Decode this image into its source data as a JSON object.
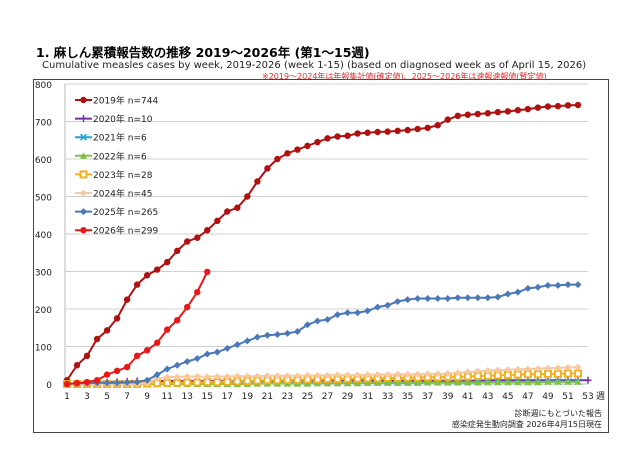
{
  "title": "1. 麻しん累積報告数の推移 2019～2026年 (第1～15週)",
  "subtitle": "Cumulative measles cases by week, 2019-2026 (week 1-15)  (based on diagnosed week as of April 15, 2026)",
  "note": "※2019～2024年は年報集計値(確定値)、2025～2026年は速報速報値(暫定値)",
  "footer": [
    "診断週にもとづいた報告",
    "感染症発生動向調査 2026年4月15日現在"
  ],
  "chart_data": {
    "type": "line",
    "xlabel": "週",
    "ylim": [
      0,
      800
    ],
    "yticks": [
      0,
      100,
      200,
      300,
      400,
      500,
      600,
      700,
      800
    ],
    "xticks": [
      1,
      3,
      5,
      7,
      9,
      11,
      13,
      15,
      17,
      19,
      21,
      23,
      25,
      27,
      29,
      31,
      33,
      35,
      37,
      39,
      41,
      43,
      45,
      47,
      49,
      51,
      53
    ],
    "grid": true,
    "legend": "top-left",
    "series": [
      {
        "name": "2019年 n=744",
        "color": "#b01010",
        "marker": "circle",
        "values": [
          10,
          50,
          75,
          120,
          143,
          175,
          225,
          265,
          290,
          305,
          325,
          355,
          380,
          390,
          410,
          435,
          460,
          470,
          500,
          540,
          575,
          600,
          615,
          625,
          635,
          645,
          655,
          660,
          662,
          668,
          670,
          672,
          673,
          675,
          677,
          680,
          683,
          690,
          705,
          715,
          718,
          720,
          722,
          725,
          727,
          730,
          733,
          737,
          740,
          741,
          743,
          744
        ]
      },
      {
        "name": "2020年 n=10",
        "color": "#7030a0",
        "marker": "plus",
        "values": [
          1,
          2,
          3,
          4,
          5,
          6,
          7,
          8,
          8,
          8,
          8,
          8,
          8,
          8,
          8,
          8,
          8,
          8,
          8,
          8,
          8,
          8,
          9,
          9,
          9,
          9,
          9,
          9,
          9,
          9,
          9,
          9,
          9,
          9,
          9,
          9,
          9,
          9,
          9,
          9,
          9,
          9,
          10,
          10,
          10,
          10,
          10,
          10,
          10,
          10,
          10,
          10,
          10
        ]
      },
      {
        "name": "2021年 n=6",
        "color": "#20a0e0",
        "marker": "x",
        "values": [
          0,
          0,
          0,
          0,
          0,
          0,
          0,
          0,
          0,
          1,
          1,
          1,
          1,
          1,
          1,
          1,
          1,
          2,
          2,
          2,
          2,
          2,
          2,
          3,
          3,
          3,
          3,
          3,
          3,
          3,
          3,
          4,
          4,
          4,
          4,
          4,
          4,
          4,
          4,
          5,
          5,
          5,
          5,
          5,
          5,
          5,
          5,
          5,
          6,
          6,
          6,
          6
        ]
      },
      {
        "name": "2022年 n=6",
        "color": "#80c040",
        "marker": "triangle",
        "values": [
          0,
          0,
          0,
          0,
          0,
          0,
          0,
          0,
          0,
          0,
          0,
          0,
          0,
          0,
          0,
          0,
          0,
          0,
          0,
          1,
          1,
          1,
          1,
          1,
          1,
          2,
          2,
          2,
          2,
          2,
          3,
          3,
          3,
          3,
          3,
          3,
          4,
          4,
          4,
          4,
          4,
          4,
          5,
          5,
          5,
          5,
          5,
          5,
          6,
          6,
          6,
          6
        ]
      },
      {
        "name": "2023年 n=28",
        "color": "#f0b020",
        "marker": "square",
        "values": [
          0,
          0,
          0,
          0,
          0,
          0,
          0,
          0,
          1,
          2,
          3,
          3,
          4,
          4,
          5,
          5,
          6,
          7,
          8,
          9,
          10,
          10,
          11,
          11,
          12,
          12,
          13,
          13,
          14,
          14,
          15,
          15,
          16,
          16,
          17,
          17,
          18,
          18,
          19,
          19,
          20,
          21,
          22,
          23,
          24,
          25,
          26,
          26,
          27,
          27,
          28,
          28
        ]
      },
      {
        "name": "2024年 n=45",
        "color": "#f8c8a0",
        "marker": "diamond",
        "values": [
          0,
          0,
          0,
          0,
          0,
          0,
          0,
          0,
          2,
          15,
          18,
          19,
          20,
          20,
          20,
          20,
          20,
          21,
          21,
          21,
          22,
          22,
          22,
          22,
          23,
          23,
          23,
          24,
          24,
          24,
          25,
          25,
          25,
          26,
          26,
          26,
          27,
          27,
          28,
          30,
          32,
          34,
          36,
          37,
          38,
          39,
          40,
          41,
          42,
          43,
          44,
          45
        ]
      },
      {
        "name": "2025年 n=265",
        "color": "#4a78b8",
        "marker": "diamond",
        "values": [
          0,
          2,
          2,
          3,
          3,
          3,
          4,
          5,
          10,
          25,
          40,
          50,
          60,
          68,
          80,
          85,
          95,
          105,
          115,
          125,
          130,
          132,
          135,
          140,
          158,
          168,
          172,
          185,
          190,
          190,
          195,
          205,
          210,
          220,
          225,
          228,
          228,
          228,
          228,
          230,
          230,
          230,
          230,
          232,
          240,
          245,
          255,
          258,
          263,
          263,
          265,
          265
        ]
      },
      {
        "name": "2026年 n=299",
        "color": "#e81818",
        "marker": "circle",
        "values": [
          0,
          2,
          5,
          10,
          25,
          35,
          45,
          75,
          90,
          110,
          145,
          170,
          205,
          245,
          299
        ]
      }
    ]
  }
}
